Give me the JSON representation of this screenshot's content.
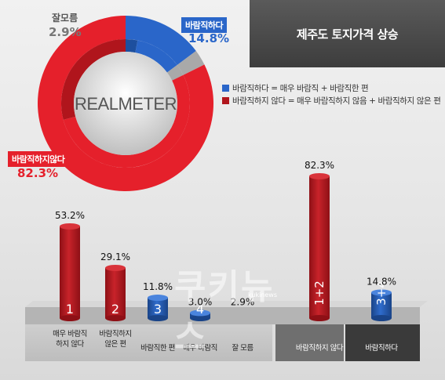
{
  "title": "제주도 토지가격 상승",
  "logo": "REALMETER",
  "watermark": {
    "text": "쿠키뉴스",
    "sub": "kukinews"
  },
  "colors": {
    "red": "#e5202b",
    "blue": "#2a66c9",
    "gray": "#a9a9a9",
    "dark_red": "#b0151c",
    "dark_blue": "#1d4f9e"
  },
  "donut": {
    "labels": [
      {
        "name": "바람직하다",
        "value": "14.8%"
      },
      {
        "name": "잘모름",
        "value": "2.9%"
      },
      {
        "name": "바람직하지않다",
        "value": "82.3%"
      }
    ]
  },
  "legend": [
    {
      "text": "바람직하다 = 매우 바람직 + 바람직한 편",
      "color": "#2a66c9"
    },
    {
      "text": "바람직하지 않다 = 매우 바람직하지 않음 + 바람직하지 않은 편",
      "color": "#b0151c"
    }
  ],
  "chart_data": [
    {
      "type": "pie",
      "categories": [
        "바람직하다",
        "잘모름",
        "바람직하지않다"
      ],
      "values": [
        14.8,
        2.9,
        82.3
      ],
      "inner_values": [
        3.0,
        11.8,
        2.9,
        53.2,
        29.1
      ],
      "inner_categories": [
        "매우 바람직",
        "바람직한 편",
        "잘 모름",
        "매우 바람직하지 않다",
        "바람직하지 않은 편"
      ]
    },
    {
      "type": "bar",
      "categories": [
        "매우 바람직하지 않다",
        "바람직하지 않은 편",
        "바람직한 편",
        "매우 바람직",
        "잘 모름",
        "바람직하지 않다",
        "바람직하다"
      ],
      "values": [
        53.2,
        29.1,
        11.8,
        3.0,
        2.9,
        82.3,
        14.8
      ],
      "value_labels": [
        "53.2%",
        "29.1%",
        "11.8%",
        "3.0%",
        "2.9%",
        "82.3%",
        "14.8%"
      ],
      "bar_numbers": [
        "1",
        "2",
        "3",
        "4",
        "",
        "1+2",
        "3+4"
      ],
      "category_lines": [
        [
          "매우 바람직",
          "하지 않다"
        ],
        [
          "바람직하지",
          "않은 편"
        ],
        [
          "바람직한 편"
        ],
        [
          "매우 바람직"
        ],
        [
          "잘 모름"
        ],
        [
          "바람직하지 않다"
        ],
        [
          "바람직하다"
        ]
      ],
      "bar_colors": [
        "red",
        "red",
        "blue",
        "blue",
        "none",
        "red",
        "blue"
      ]
    }
  ]
}
